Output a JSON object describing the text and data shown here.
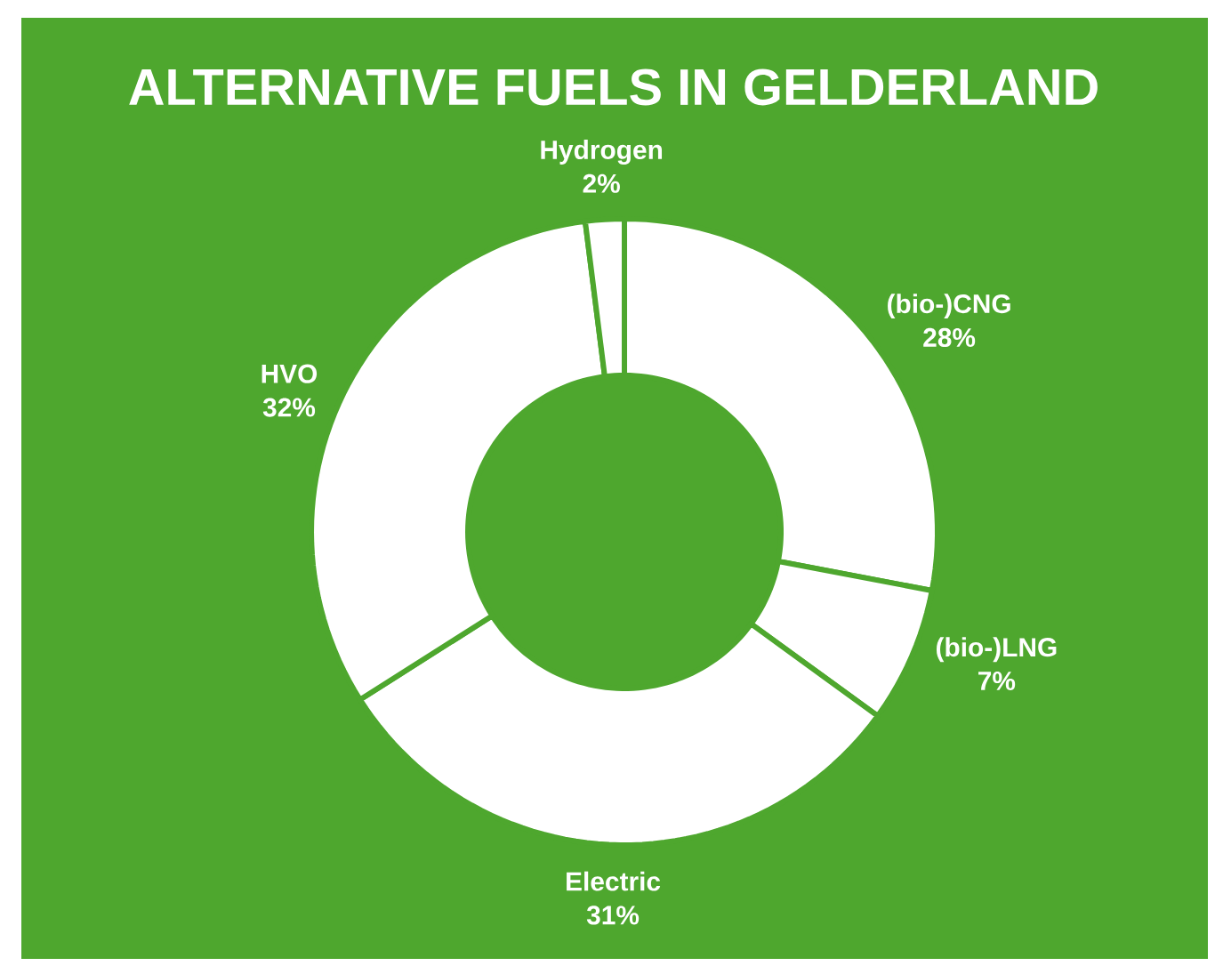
{
  "chart_data": {
    "type": "donut",
    "title": "ALTERNATIVE FUELS IN GELDERLAND",
    "categories": [
      "(bio-)CNG",
      "(bio-)LNG",
      "Electric",
      "HVO",
      "Hydrogen"
    ],
    "values": [
      28,
      7,
      31,
      32,
      2
    ],
    "value_labels": [
      "28%",
      "7%",
      "31%",
      "32%",
      "2%"
    ],
    "colors": [
      "#ffffff",
      "#ffffff",
      "#ffffff",
      "#ffffff",
      "#ffffff"
    ]
  }
}
